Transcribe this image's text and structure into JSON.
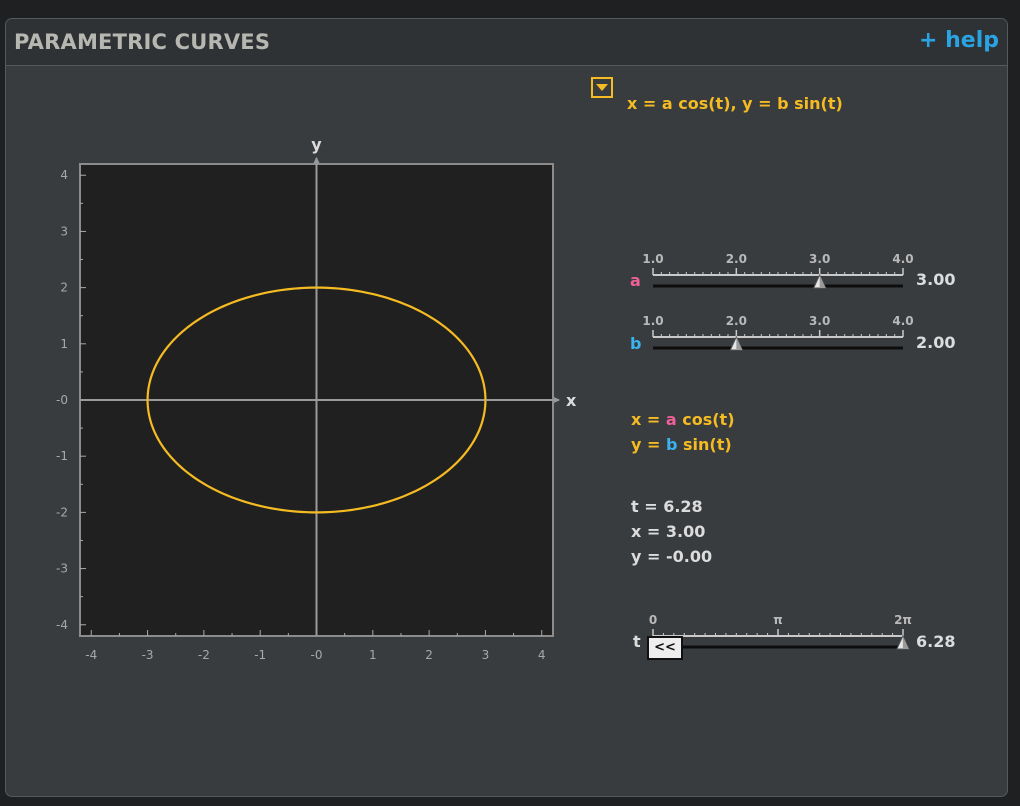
{
  "header": {
    "title": "PARAMETRIC CURVES",
    "help_label": "+ help"
  },
  "equation_selector": {
    "label": "x = a cos(t),  y = b sin(t)"
  },
  "plot": {
    "x_axis_label": "x",
    "y_axis_label": "y",
    "x_ticks": [
      "-4",
      "-3",
      "-2",
      "-1",
      "-0",
      "1",
      "2",
      "3",
      "4"
    ],
    "y_ticks": [
      "4",
      "3",
      "2",
      "1",
      "-0",
      "-1",
      "-2",
      "-3",
      "-4"
    ],
    "x_range": [
      -4.2,
      4.2
    ],
    "y_range": [
      -4.2,
      4.2
    ],
    "curve_color": "#f5bb22",
    "curve": {
      "a": 3.0,
      "b": 2.0,
      "t_max": 6.28
    }
  },
  "sliders": {
    "a": {
      "label": "a",
      "ticks": [
        "1.0",
        "2.0",
        "3.0",
        "4.0"
      ],
      "min": 1.0,
      "max": 4.0,
      "value": 3.0,
      "value_text": "3.00"
    },
    "b": {
      "label": "b",
      "ticks": [
        "1.0",
        "2.0",
        "3.0",
        "4.0"
      ],
      "min": 1.0,
      "max": 4.0,
      "value": 2.0,
      "value_text": "2.00"
    },
    "t": {
      "label": "t",
      "ticks": [
        "0",
        "π",
        "2π"
      ],
      "min": 0,
      "max": 6.2832,
      "value": 6.28,
      "value_text": "6.28"
    }
  },
  "formula": {
    "x_prefix": "x = ",
    "x_param": "a",
    "x_suffix": " cos(t)",
    "y_prefix": "y = ",
    "y_param": "b",
    "y_suffix": " sin(t)"
  },
  "readout": {
    "t": "t = 6.28",
    "x": "x = 3.00",
    "y": "y = -0.00"
  },
  "rewind_button": {
    "label": "<<"
  },
  "colors": {
    "accent": "#f5bb22",
    "a_param": "#ee6096",
    "b_param": "#3bb3ef",
    "help_link": "#2aa3e2"
  }
}
